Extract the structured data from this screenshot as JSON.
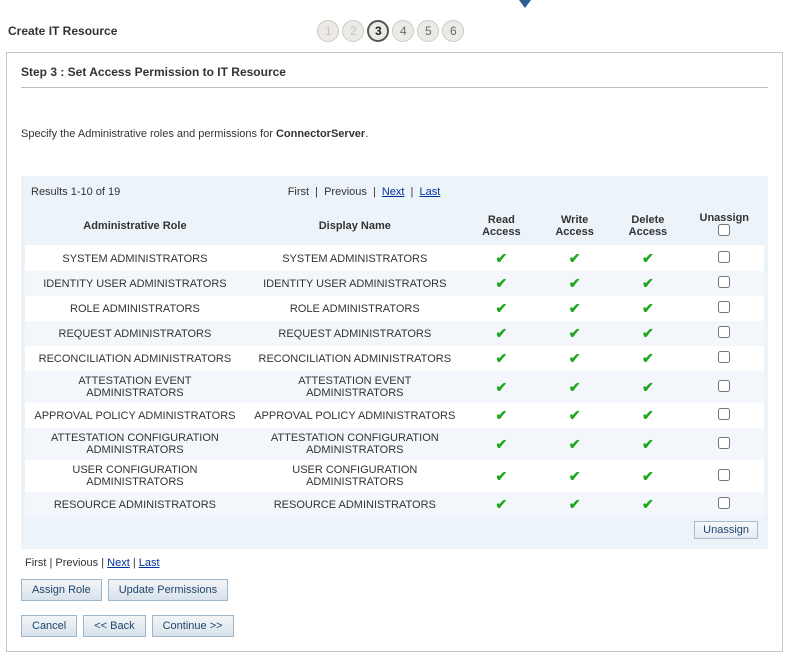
{
  "pageTitle": "Create IT Resource",
  "stepper": {
    "total": 6,
    "current": 3
  },
  "stepHeading": "Step 3 : Set Access Permission to IT Resource",
  "instructionPrefix": "Specify the Administrative roles and permissions for ",
  "instructionObject": "ConnectorServer",
  "instructionSuffix": ".",
  "resultsText": "Results 1-10 of 19",
  "pager": {
    "first": "First",
    "previous": "Previous",
    "next": "Next",
    "last": "Last"
  },
  "columns": {
    "role": "Administrative Role",
    "display": "Display Name",
    "read": "Read Access",
    "write": "Write Access",
    "delete": "Delete Access",
    "unassign": "Unassign"
  },
  "rows": [
    {
      "role": "SYSTEM ADMINISTRATORS",
      "display": "SYSTEM ADMINISTRATORS",
      "read": true,
      "write": true,
      "delete": true
    },
    {
      "role": "IDENTITY USER ADMINISTRATORS",
      "display": "IDENTITY USER ADMINISTRATORS",
      "read": true,
      "write": true,
      "delete": true
    },
    {
      "role": "ROLE ADMINISTRATORS",
      "display": "ROLE ADMINISTRATORS",
      "read": true,
      "write": true,
      "delete": true
    },
    {
      "role": "REQUEST ADMINISTRATORS",
      "display": "REQUEST ADMINISTRATORS",
      "read": true,
      "write": true,
      "delete": true
    },
    {
      "role": "RECONCILIATION ADMINISTRATORS",
      "display": "RECONCILIATION ADMINISTRATORS",
      "read": true,
      "write": true,
      "delete": true
    },
    {
      "role": "ATTESTATION EVENT ADMINISTRATORS",
      "display": "ATTESTATION EVENT ADMINISTRATORS",
      "read": true,
      "write": true,
      "delete": true
    },
    {
      "role": "APPROVAL POLICY ADMINISTRATORS",
      "display": "APPROVAL POLICY ADMINISTRATORS",
      "read": true,
      "write": true,
      "delete": true
    },
    {
      "role": "ATTESTATION CONFIGURATION ADMINISTRATORS",
      "display": "ATTESTATION CONFIGURATION ADMINISTRATORS",
      "read": true,
      "write": true,
      "delete": true
    },
    {
      "role": "USER CONFIGURATION ADMINISTRATORS",
      "display": "USER CONFIGURATION ADMINISTRATORS",
      "read": true,
      "write": true,
      "delete": true
    },
    {
      "role": "RESOURCE ADMINISTRATORS",
      "display": "RESOURCE ADMINISTRATORS",
      "read": true,
      "write": true,
      "delete": true
    }
  ],
  "buttons": {
    "unassign": "Unassign",
    "assignRole": "Assign Role",
    "updatePermissions": "Update Permissions",
    "cancel": "Cancel",
    "back": "<< Back",
    "continue": "Continue >>"
  },
  "colors": {
    "panelBorder": "#c7c7c7",
    "tableBg": "#ecf3f9",
    "checkColor": "#1ea81e",
    "arrowColor": "#2c5f90"
  }
}
